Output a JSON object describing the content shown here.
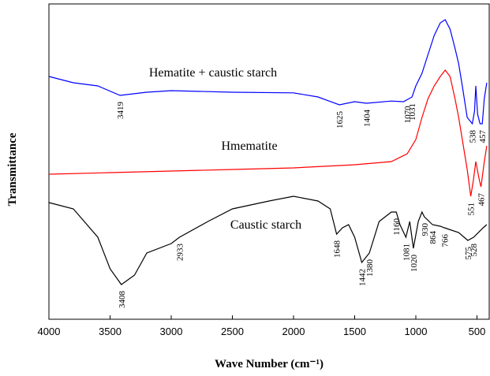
{
  "chart_data": {
    "type": "line",
    "xlabel": "Wave Number (cm⁻¹)",
    "ylabel": "Transmittance",
    "xlim": [
      4000,
      400
    ],
    "ylim": [
      0,
      100
    ],
    "xticks": [
      4000,
      3500,
      3000,
      2500,
      2000,
      1500,
      1000,
      500
    ],
    "series": [
      {
        "name": "Hematite + caustic starch",
        "color": "#0000ff",
        "x": [
          4000,
          3800,
          3600,
          3419,
          3200,
          3000,
          2500,
          2000,
          1800,
          1625,
          1500,
          1404,
          1200,
          1100,
          1031,
          1000,
          950,
          900,
          850,
          800,
          760,
          720,
          680,
          650,
          620,
          580,
          538,
          520,
          510,
          495,
          475,
          457,
          440,
          420
        ],
        "values": [
          77,
          75,
          74,
          71,
          72,
          72.5,
          72,
          71.8,
          70.5,
          68,
          69,
          68.5,
          69.2,
          69,
          70.5,
          74,
          78,
          84,
          90,
          94,
          95,
          92,
          86,
          81,
          74,
          64,
          62,
          66,
          74,
          65,
          62,
          62,
          70,
          75
        ]
      },
      {
        "name": "Hmematite",
        "color": "#ff0000",
        "x": [
          4000,
          3500,
          3000,
          2500,
          2000,
          1500,
          1200,
          1070,
          1000,
          950,
          900,
          850,
          800,
          760,
          720,
          680,
          650,
          620,
          580,
          551,
          530,
          510,
          495,
          480,
          467,
          440,
          420
        ],
        "values": [
          46,
          46.5,
          47,
          47.5,
          48,
          49,
          50,
          52.5,
          57,
          64,
          70,
          74,
          77,
          79,
          77,
          70,
          64,
          57,
          47.5,
          39,
          44,
          50,
          47,
          44,
          42,
          50,
          55
        ]
      },
      {
        "name": "Caustic starch",
        "color": "#000000",
        "x": [
          4000,
          3800,
          3600,
          3500,
          3408,
          3300,
          3200,
          3000,
          2933,
          2700,
          2500,
          2200,
          2000,
          1800,
          1700,
          1648,
          1600,
          1550,
          1500,
          1442,
          1380,
          1300,
          1200,
          1160,
          1130,
          1081,
          1050,
          1020,
          980,
          950,
          930,
          864,
          800,
          766,
          650,
          575,
          528,
          450,
          420
        ],
        "values": [
          37,
          35,
          26,
          16,
          11,
          14,
          21,
          24,
          26,
          31,
          35,
          37.5,
          39,
          37.5,
          35,
          27,
          29,
          30,
          26,
          18,
          21,
          31,
          34,
          34,
          30,
          26,
          31,
          22.5,
          31,
          34,
          32.5,
          30,
          29.5,
          29,
          27.5,
          25,
          26,
          29,
          30
        ],
        "peaks_note": null
      }
    ],
    "peaks": [
      [
        3419,
        1625,
        1404,
        1070,
        1031,
        538,
        457
      ],
      [
        551,
        467
      ],
      [
        3408,
        2933,
        1648,
        1442,
        1380,
        1160,
        1081,
        1020,
        930,
        864,
        766,
        575,
        528
      ]
    ]
  }
}
